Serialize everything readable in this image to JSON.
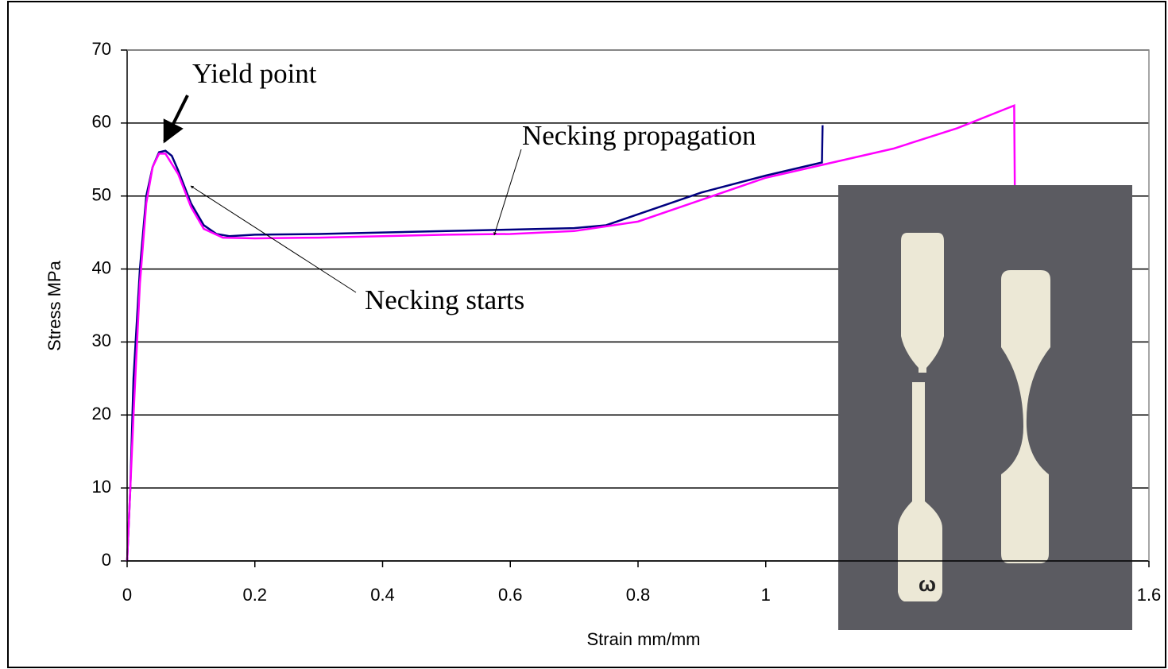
{
  "chart_data": {
    "type": "line",
    "x_label": "Strain mm/mm",
    "y_label": "Stress MPa",
    "annotations": [
      "Yield point",
      "Necking propagation",
      "Necking starts"
    ],
    "series": [
      {
        "color": "#000080",
        "x": [
          0,
          0.005,
          0.01,
          0.02,
          0.03,
          0.04,
          0.05,
          0.06,
          0.07,
          0.08,
          0.1,
          0.12,
          0.14,
          0.16,
          0.2,
          0.3,
          0.4,
          0.5,
          0.6,
          0.7,
          0.75,
          0.8,
          0.9,
          1.0,
          1.088,
          1.089
        ],
        "values": [
          0,
          10,
          25,
          40,
          50,
          54,
          56,
          56.2,
          55.5,
          53.5,
          49,
          46,
          44.8,
          44.5,
          44.7,
          44.8,
          45,
          45.2,
          45.4,
          45.6,
          46,
          47.5,
          50.5,
          52.8,
          54.6,
          59.7
        ]
      },
      {
        "color": "#ff00ff",
        "x": [
          0,
          0.01,
          0.02,
          0.03,
          0.04,
          0.05,
          0.06,
          0.08,
          0.1,
          0.12,
          0.15,
          0.2,
          0.3,
          0.4,
          0.5,
          0.6,
          0.7,
          0.8,
          0.9,
          1.0,
          1.1,
          1.2,
          1.3,
          1.389,
          1.39
        ],
        "values": [
          0,
          20,
          38,
          49,
          54,
          55.8,
          55.8,
          53,
          48.5,
          45.5,
          44.3,
          44.2,
          44.3,
          44.5,
          44.7,
          44.8,
          45.2,
          46.5,
          49.5,
          52.5,
          54.5,
          56.5,
          59.3,
          62.4,
          51
        ]
      }
    ],
    "xlim": [
      0,
      1.6
    ],
    "xticks": [
      0,
      0.2,
      0.4,
      0.6,
      0.8,
      1,
      1.6
    ],
    "ylim": [
      0,
      70
    ],
    "yticks": [
      0,
      10,
      20,
      30,
      40,
      50,
      60,
      70
    ],
    "grid": true
  }
}
